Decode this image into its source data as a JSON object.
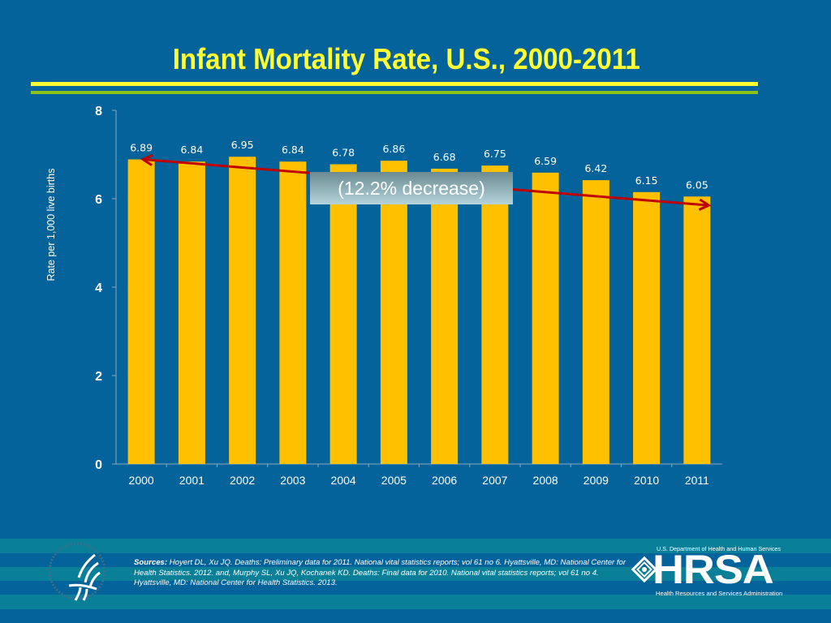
{
  "slide": {
    "title": "Infant Mortality Rate, U.S., 2000-2011",
    "colors": {
      "background": "#03639a",
      "title": "#ffff33",
      "rule_primary": "#ffff33",
      "rule_secondary": "#8cc21a",
      "bar": "#ffc000",
      "arrow": "#c00000",
      "text": "#ffffff"
    }
  },
  "chart_data": {
    "type": "bar",
    "title": "Infant Mortality Rate, U.S., 2000-2011",
    "xlabel": "",
    "ylabel": "Rate per 1,000 live births",
    "categories": [
      "2000",
      "2001",
      "2002",
      "2003",
      "2004",
      "2005",
      "2006",
      "2007",
      "2008",
      "2009",
      "2010",
      "2011"
    ],
    "values": [
      6.89,
      6.84,
      6.95,
      6.84,
      6.78,
      6.86,
      6.68,
      6.75,
      6.59,
      6.42,
      6.15,
      6.05
    ],
    "data_labels": [
      "6.89",
      "6.84",
      "6.95",
      "6.84",
      "6.78",
      "6.86",
      "6.68",
      "6.75",
      "6.59",
      "6.42",
      "6.15",
      "6.05"
    ],
    "ylim": [
      0,
      8
    ],
    "yticks": [
      0,
      2,
      4,
      6,
      8
    ],
    "ytick_labels": [
      "0",
      "2",
      "4",
      "6",
      "8"
    ],
    "grid": false,
    "legend": "none",
    "annotations": [
      {
        "type": "arrow",
        "from": {
          "category": "2011",
          "value": 5.85
        },
        "to": {
          "category": "2000",
          "value": 6.89
        },
        "double_headed": true
      },
      {
        "type": "callout",
        "text": "(12.2% decrease)"
      }
    ]
  },
  "callout": {
    "text": "(12.2% decrease)"
  },
  "footer": {
    "sources_label": "Sources:",
    "sources_text": " Hoyert DL, Xu JQ. Deaths: Preliminary data for 2011. National vital statistics reports; vol 61 no 6. Hyattsville, MD: National Center for Health Statistics. 2012. and, Murphy SL, Xu JQ, Kochanek KD. Deaths: Final data for 2010. National vital statistics reports; vol 61 no 4. Hyattsville, MD: National Center for Health Statistics. 2013.",
    "hrsa": {
      "top_line": "U.S. Department of Health and Human Services",
      "wordmark": "HRSA",
      "bottom_line": "Health Resources and Services Administration"
    },
    "hhs_logo_icon": "hhs-eagle-seal-icon"
  }
}
